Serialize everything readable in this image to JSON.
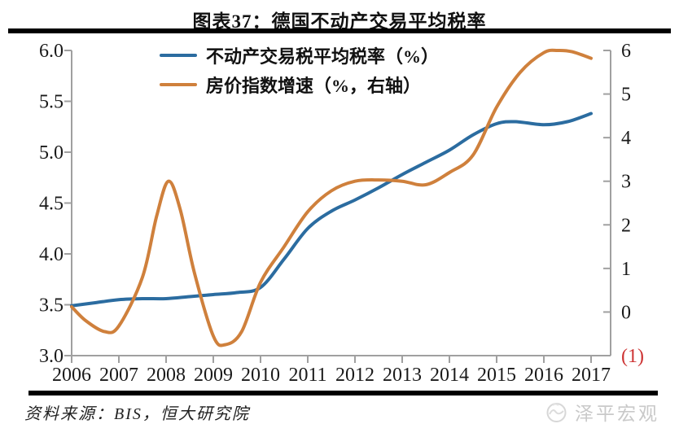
{
  "header": {
    "title": "图表37：德国不动产交易平均税率"
  },
  "legend": {
    "items": [
      {
        "label": "不动产交易税平均税率（%）",
        "color": "#2b6ca0"
      },
      {
        "label": "房价指数增速（%，右轴）",
        "color": "#cf803c"
      }
    ]
  },
  "footer": {
    "source": "资料来源：BIS，恒大研究院",
    "watermark": "泽平宏观"
  },
  "colors": {
    "axis": "#a0a0a0",
    "tick_label": "#1a1a1a",
    "negative_label": "#cd3333"
  },
  "chart_data": {
    "type": "line",
    "title": "图表37：德国不动产交易平均税率",
    "grid": false,
    "legend_position": "top-center",
    "x_ticks": [
      "2006",
      "2007",
      "2008",
      "2009",
      "2010",
      "2011",
      "2012",
      "2013",
      "2014",
      "2015",
      "2016",
      "2017"
    ],
    "left_axis": {
      "label_ticks": [
        "6.0",
        "5.5",
        "5.0",
        "4.5",
        "4.0",
        "3.5",
        "3.0"
      ],
      "min": 3.0,
      "max": 6.0
    },
    "right_axis": {
      "label_ticks": [
        "6",
        "5",
        "4",
        "3",
        "2",
        "1",
        "0",
        "(1)"
      ],
      "min": -1,
      "max": 6
    },
    "series": [
      {
        "name": "不动产交易税平均税率（%）",
        "axis": "left",
        "color": "#2b6ca0",
        "points": [
          [
            2006,
            3.49
          ],
          [
            2006.5,
            3.52
          ],
          [
            2007,
            3.55
          ],
          [
            2007.5,
            3.56
          ],
          [
            2008,
            3.56
          ],
          [
            2008.5,
            3.58
          ],
          [
            2009,
            3.6
          ],
          [
            2009.5,
            3.62
          ],
          [
            2010,
            3.67
          ],
          [
            2010.5,
            3.95
          ],
          [
            2011,
            4.25
          ],
          [
            2011.5,
            4.42
          ],
          [
            2012,
            4.53
          ],
          [
            2012.5,
            4.65
          ],
          [
            2013,
            4.78
          ],
          [
            2013.5,
            4.9
          ],
          [
            2014,
            5.02
          ],
          [
            2014.5,
            5.17
          ],
          [
            2015,
            5.28
          ],
          [
            2015.4,
            5.3
          ],
          [
            2016,
            5.27
          ],
          [
            2016.5,
            5.3
          ],
          [
            2017,
            5.38
          ]
        ]
      },
      {
        "name": "房价指数增速（%，右轴）",
        "axis": "right",
        "color": "#cf803c",
        "points": [
          [
            2006,
            0.12
          ],
          [
            2006.3,
            -0.2
          ],
          [
            2006.7,
            -0.45
          ],
          [
            2007,
            -0.32
          ],
          [
            2007.5,
            0.8
          ],
          [
            2007.8,
            2.2
          ],
          [
            2008.05,
            3.0
          ],
          [
            2008.3,
            2.35
          ],
          [
            2008.6,
            0.9
          ],
          [
            2009,
            -0.55
          ],
          [
            2009.25,
            -0.75
          ],
          [
            2009.6,
            -0.45
          ],
          [
            2010,
            0.68
          ],
          [
            2010.5,
            1.5
          ],
          [
            2011,
            2.3
          ],
          [
            2011.5,
            2.78
          ],
          [
            2012,
            3.0
          ],
          [
            2012.5,
            3.03
          ],
          [
            2013,
            3.0
          ],
          [
            2013.5,
            2.92
          ],
          [
            2014,
            3.2
          ],
          [
            2014.5,
            3.6
          ],
          [
            2015,
            4.7
          ],
          [
            2015.5,
            5.5
          ],
          [
            2016,
            5.95
          ],
          [
            2016.3,
            6.0
          ],
          [
            2016.6,
            5.97
          ],
          [
            2017,
            5.82
          ]
        ]
      }
    ]
  }
}
